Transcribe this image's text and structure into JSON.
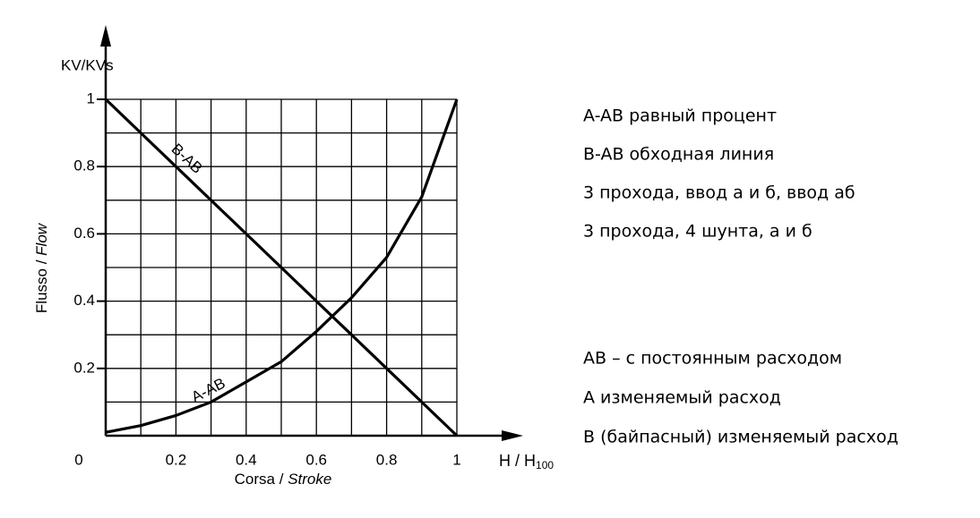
{
  "chart_data": {
    "type": "line",
    "ylabel_top": "KV/KVs",
    "ylabel": {
      "main": "Flusso / ",
      "italic": "Flow"
    },
    "xlabel": {
      "main": "Corsa / ",
      "italic": "Stroke"
    },
    "xunit": {
      "main": "H / H",
      "sub": "100"
    },
    "xlim": [
      0,
      1
    ],
    "ylim": [
      0,
      1
    ],
    "xticks": [
      0,
      0.2,
      0.4,
      0.6,
      0.8,
      1
    ],
    "yticks": [
      0.2,
      0.4,
      0.6,
      0.8,
      1
    ],
    "grid_x": [
      0.1,
      0.2,
      0.3,
      0.4,
      0.5,
      0.6,
      0.7,
      0.8,
      0.9,
      1
    ],
    "grid_y": [
      0.1,
      0.2,
      0.3,
      0.4,
      0.5,
      0.6,
      0.7,
      0.8,
      0.9,
      1
    ],
    "x": [
      0,
      0.1,
      0.2,
      0.3,
      0.4,
      0.5,
      0.6,
      0.7,
      0.8,
      0.9,
      1
    ],
    "series": [
      {
        "name": "B-AB",
        "color": "#000000",
        "values": [
          1,
          0.9,
          0.8,
          0.7,
          0.6,
          0.5,
          0.4,
          0.3,
          0.2,
          0.1,
          0
        ]
      },
      {
        "name": "A-AB",
        "color": "#000000",
        "values": [
          0.01,
          0.03,
          0.06,
          0.1,
          0.16,
          0.22,
          0.31,
          0.41,
          0.53,
          0.71,
          1
        ]
      }
    ]
  },
  "notes": {
    "group1": [
      "A-AB равный процент",
      "B-AB обходная линия",
      "3 прохода, ввод а и б, ввод аб",
      "3 прохода, 4 шунта, а и б"
    ],
    "group2": [
      "AB – с постоянным расходом",
      "A  изменяемый расход",
      "B  (байпасный)  изменяемый расход"
    ]
  }
}
